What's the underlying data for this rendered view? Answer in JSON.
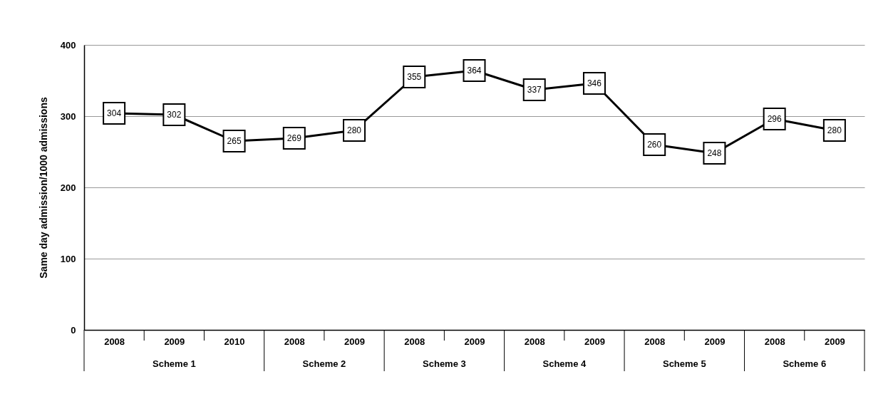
{
  "chart_data": {
    "type": "line",
    "ylabel": "Same day admission/1000 admissions",
    "categories": [
      "2008",
      "2009",
      "2010",
      "2008",
      "2009",
      "2008",
      "2009",
      "2008",
      "2009",
      "2008",
      "2009",
      "2008",
      "2009"
    ],
    "values": [
      304,
      302,
      265,
      269,
      280,
      355,
      364,
      337,
      346,
      260,
      248,
      296,
      280
    ],
    "color": "#000000",
    "ylim": [
      0,
      400
    ],
    "yticks": [
      0,
      100,
      200,
      300,
      400
    ],
    "grid": "y",
    "marker": "square",
    "line_style": "solid",
    "data_labels": true,
    "annotations": [
      "Scheme 1",
      "Scheme 2",
      "Scheme 3",
      "Scheme 4",
      "Scheme 5",
      "Scheme 6"
    ]
  }
}
